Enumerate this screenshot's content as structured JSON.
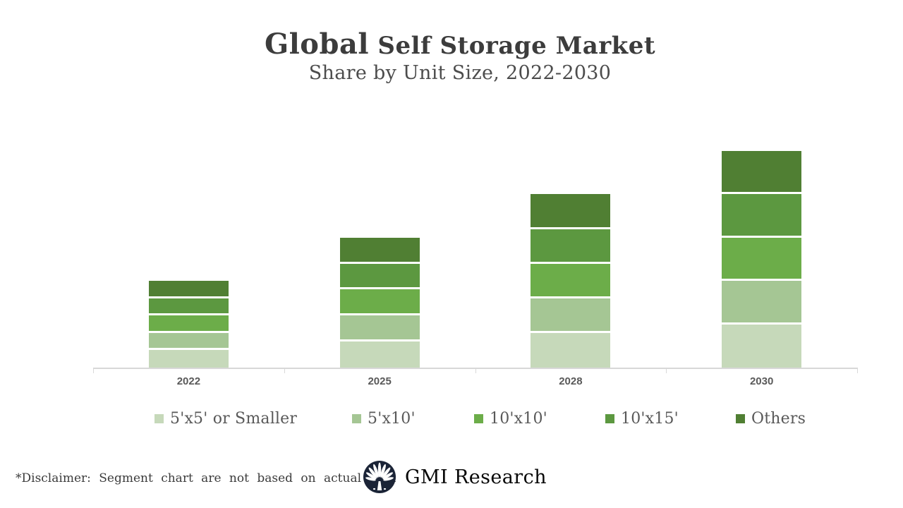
{
  "header": {
    "title_emphasis": "Global",
    "title_rest": " Self Storage Market",
    "subtitle": "Share by Unit Size, 2022-2030"
  },
  "chart_data": {
    "type": "bar",
    "stacked": true,
    "title": "Global Self Storage Market",
    "subtitle": "Share by Unit Size, 2022-2030",
    "categories": [
      "2022",
      "2025",
      "2028",
      "2030"
    ],
    "series": [
      {
        "name": "5'x5' or Smaller",
        "color": "#C6D9BA",
        "values": [
          20,
          30,
          40,
          50
        ]
      },
      {
        "name": "5'x10'",
        "color": "#A5C694",
        "values": [
          20,
          30,
          40,
          50
        ]
      },
      {
        "name": "10'x10'",
        "color": "#6CAD49",
        "values": [
          20,
          30,
          40,
          50
        ]
      },
      {
        "name": "10'x15'",
        "color": "#5C9840",
        "values": [
          20,
          30,
          40,
          50
        ]
      },
      {
        "name": "Others",
        "color": "#507F33",
        "values": [
          20,
          30,
          40,
          50
        ]
      }
    ],
    "totals": [
      100,
      150,
      200,
      250
    ],
    "unit": "illustrative relative share (not actual data)",
    "xlabel": "",
    "ylabel": "",
    "grid": false,
    "y_axis_shown": false,
    "legend_position": "bottom",
    "axis_line_color": "#D8D8D8",
    "segment_gap_color": "#FFFFFF",
    "note": "All five unit-size segments are equal within each year; yearly totals scale ~1 : 1.5 : 2 : 2.5"
  },
  "footer": {
    "disclaimer": "*Disclaimer: Segment chart are not based on actual data",
    "logo_text": "GMI Research",
    "logo_icon": "fan-palm-emblem",
    "logo_circle_color": "#1B2437"
  }
}
